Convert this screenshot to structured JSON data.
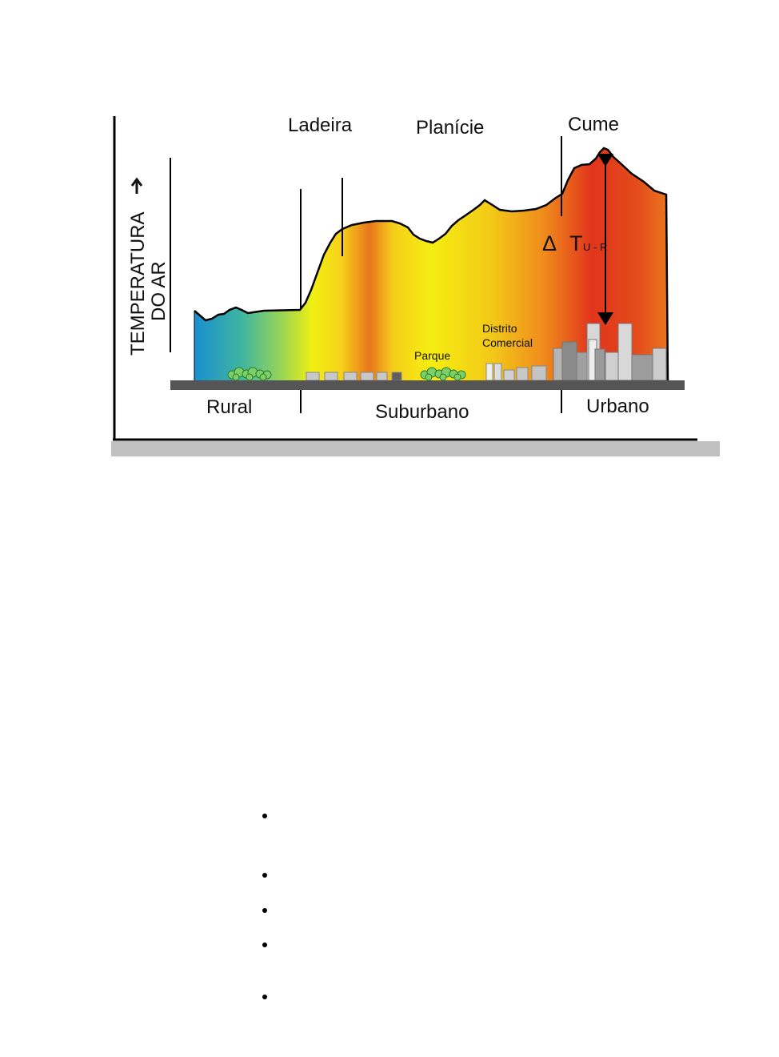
{
  "figure": {
    "axis_label_line1": "TEMPERATURA",
    "axis_label_line2": "DO AR",
    "axis_arrow": "arrow-up-icon",
    "top_labels": {
      "slope": "Ladeira",
      "plain": "Planície",
      "peak": "Cume"
    },
    "zone_labels": {
      "rural": "Rural",
      "suburban": "Suburbano",
      "urban": "Urbano"
    },
    "feature_labels": {
      "park": "Parque",
      "district_line1": "Distrito",
      "district_line2": "Comercial"
    },
    "delta": {
      "symbol": "Δ",
      "T": "T",
      "subscript": "U - R"
    },
    "colors": {
      "cool": "#1a8fcf",
      "mid": "#f5f011",
      "hot": "#e02a1e",
      "ground": "#555555",
      "shadow": "#c0c0c0",
      "tree": "#7bd06a"
    }
  },
  "bullets": [
    "",
    "",
    "",
    "",
    ""
  ]
}
